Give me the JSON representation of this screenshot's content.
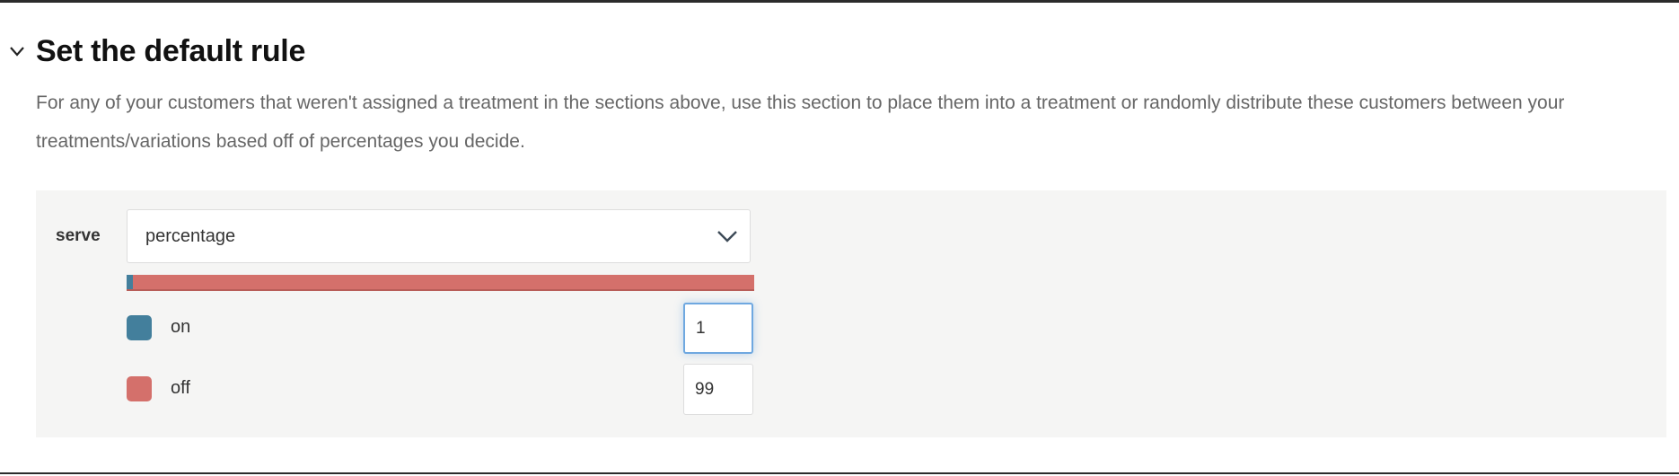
{
  "section": {
    "title": "Set the default rule",
    "description": "For any of your customers that weren't assigned a treatment in the sections above, use this section to place them into a treatment or randomly distribute these customers between your treatments/variations based off of percentages you decide.",
    "collapse_icon": "chevron-down-icon"
  },
  "rule": {
    "serve_label": "serve",
    "serve_value": "percentage",
    "treatments": [
      {
        "name": "on",
        "percent": "1",
        "color": "#437f9c"
      },
      {
        "name": "off",
        "percent": "99",
        "color": "#d4706b"
      }
    ]
  }
}
